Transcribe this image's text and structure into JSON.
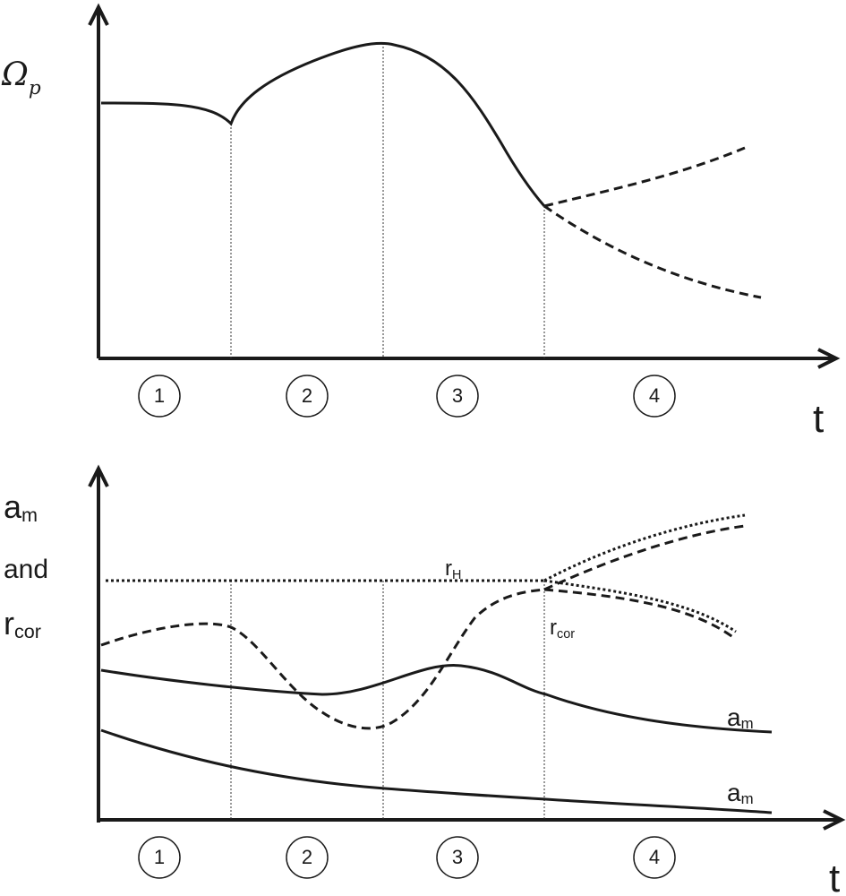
{
  "top_panel": {
    "y_label": {
      "symbol": "Ω",
      "subscript": "p"
    },
    "x_label": "t",
    "phases": [
      "1",
      "2",
      "3",
      "4"
    ]
  },
  "bottom_panel": {
    "y_label": {
      "line1": {
        "symbol": "a",
        "subscript": "m"
      },
      "line2": "and",
      "line3": {
        "symbol": "r",
        "subscript": "cor"
      }
    },
    "x_label": "t",
    "phases": [
      "1",
      "2",
      "3",
      "4"
    ],
    "curve_labels": {
      "r_h": {
        "symbol": "r",
        "subscript": "H"
      },
      "r_cor": {
        "symbol": "r",
        "subscript": "cor"
      },
      "a_m_upper": {
        "symbol": "a",
        "subscript": "m"
      },
      "a_m_lower": {
        "symbol": "a",
        "subscript": "m"
      }
    }
  }
}
